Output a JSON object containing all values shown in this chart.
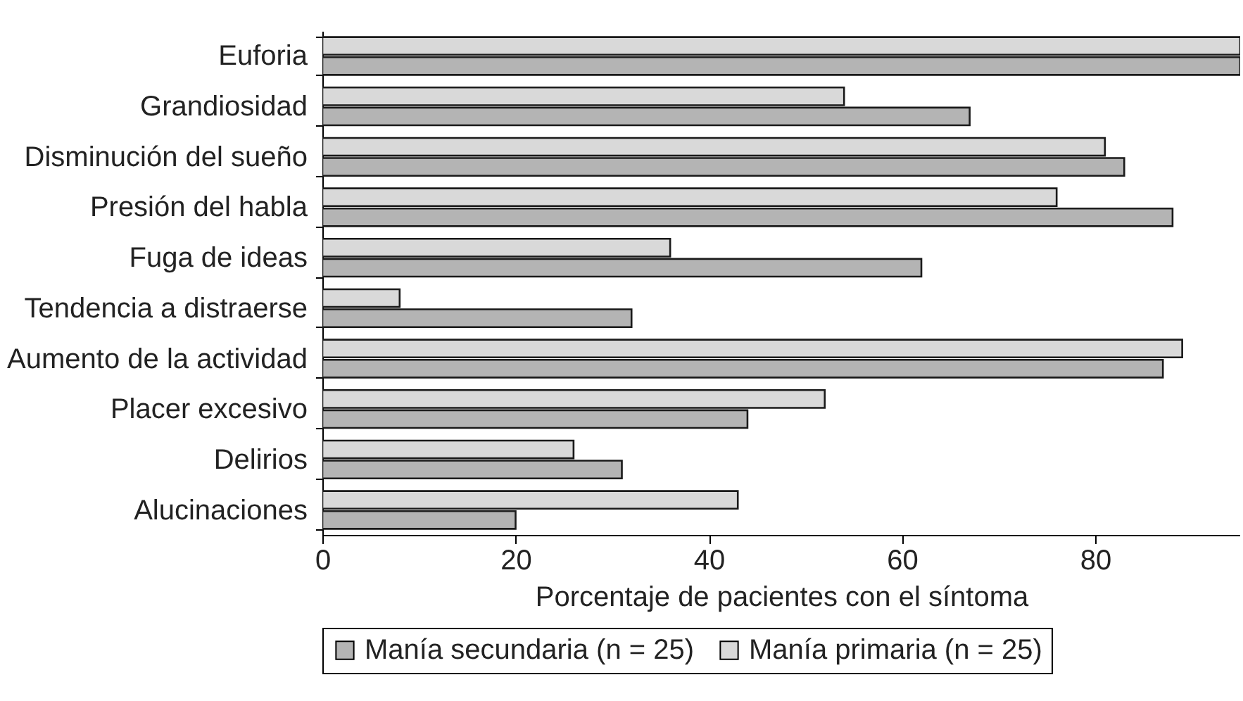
{
  "chart_data": {
    "type": "bar",
    "orientation": "horizontal",
    "xlabel": "Porcentaje de pacientes con el síntoma",
    "categories": [
      "Euforia",
      "Grandiosidad",
      "Disminución del sueño",
      "Presión del habla",
      "Fuga de ideas",
      "Tendencia a distraerse",
      "Aumento de la actividad",
      "Placer excesivo",
      "Delirios",
      "Alucinaciones"
    ],
    "series": [
      {
        "name": "Manía secundaria (n = 25)",
        "color": "#b4b4b4",
        "values": [
          95,
          67,
          83,
          88,
          62,
          32,
          87,
          44,
          31,
          20
        ]
      },
      {
        "name": "Manía primaria (n = 25)",
        "color": "#d9d9d9",
        "values": [
          95,
          54,
          81,
          76,
          36,
          8,
          89,
          52,
          26,
          43
        ]
      }
    ],
    "xlim": [
      0,
      95
    ],
    "xticks": [
      0,
      20,
      40,
      60,
      80
    ],
    "grid": false,
    "legend": "bottom"
  }
}
